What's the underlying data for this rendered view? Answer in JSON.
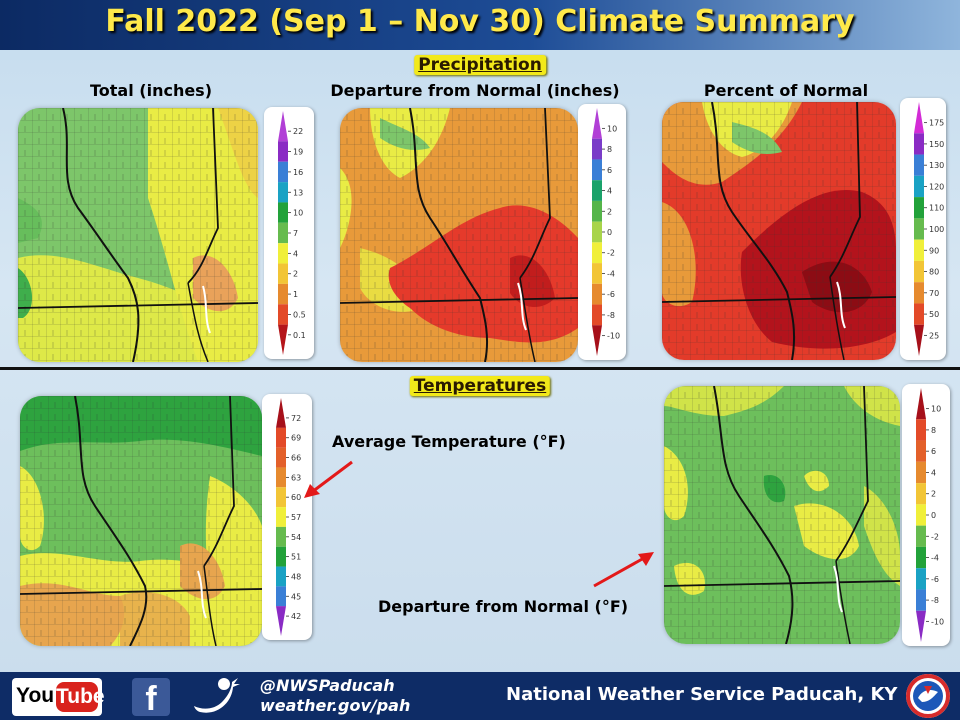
{
  "title": "Fall 2022 (Sep 1 – Nov 30) Climate Summary",
  "sections": {
    "precip": "Precipitation",
    "temp": "Temperatures"
  },
  "headers": {
    "total": "Total (inches)",
    "departure": "Departure  from Normal (inches)",
    "percent": "Percent of Normal"
  },
  "annotations": {
    "avg_temp": "Average Temperature (°F)",
    "temp_departure": "Departure  from Normal (°F)"
  },
  "legends": {
    "precip_total": {
      "labels": [
        "22",
        "19",
        "16",
        "13",
        "10",
        "7",
        "4",
        "2",
        "1",
        "0.5",
        "0.1"
      ],
      "colors": [
        "#b13fd6",
        "#8a2bc4",
        "#3a7fd6",
        "#1aa2c4",
        "#22a23a",
        "#66bb4e",
        "#f0ef3a",
        "#f2c536",
        "#e68a2e",
        "#e34a28",
        "#b4151a"
      ]
    },
    "precip_departure": {
      "labels": [
        "10",
        "8",
        "6",
        "4",
        "2",
        "0",
        "-2",
        "-4",
        "-6",
        "-8",
        "-10"
      ],
      "colors": [
        "#b13fd6",
        "#7a3cc8",
        "#3a7fd6",
        "#1aa26a",
        "#55b54a",
        "#a8d44a",
        "#f0ef3a",
        "#f2c536",
        "#e68a2e",
        "#e34a28",
        "#a6101a"
      ]
    },
    "precip_percent": {
      "labels": [
        "175",
        "150",
        "130",
        "120",
        "110",
        "100",
        "90",
        "80",
        "70",
        "50",
        "25"
      ],
      "colors": [
        "#d32bd6",
        "#8a2bc4",
        "#3a7fd6",
        "#1aa2c4",
        "#22a23a",
        "#66bb4e",
        "#f0ef3a",
        "#f2c536",
        "#e68a2e",
        "#e34a28",
        "#a6101a"
      ]
    },
    "temp_avg": {
      "labels": [
        "72",
        "69",
        "66",
        "63",
        "60",
        "57",
        "54",
        "51",
        "48",
        "45",
        "42"
      ],
      "colors": [
        "#a6101a",
        "#e34a28",
        "#e3602a",
        "#e68a2e",
        "#f2c536",
        "#f0ef3a",
        "#66bb4e",
        "#22a23a",
        "#1aa2c4",
        "#3a7fd6",
        "#8a2bc4"
      ]
    },
    "temp_departure": {
      "labels": [
        "10",
        "8",
        "6",
        "4",
        "2",
        "0",
        "-2",
        "-4",
        "-6",
        "-8",
        "-10"
      ],
      "colors": [
        "#a6101a",
        "#e34a28",
        "#e3602a",
        "#e68a2e",
        "#f2c536",
        "#f0ef3a",
        "#66bb4e",
        "#22a23a",
        "#1aa2c4",
        "#3a7fd6",
        "#8a2bc4"
      ]
    }
  },
  "footer": {
    "youtube_you": "You",
    "youtube_tube": "Tube",
    "facebook": "f",
    "twitter_handle": "@NWSPaducah",
    "website": "weather.gov/pah",
    "office": "National Weather Service Paducah, KY"
  },
  "icons": {
    "youtube": "youtube-logo",
    "facebook": "facebook-logo",
    "twitter": "twitter-bird-icon",
    "seal": "nws-seal"
  }
}
